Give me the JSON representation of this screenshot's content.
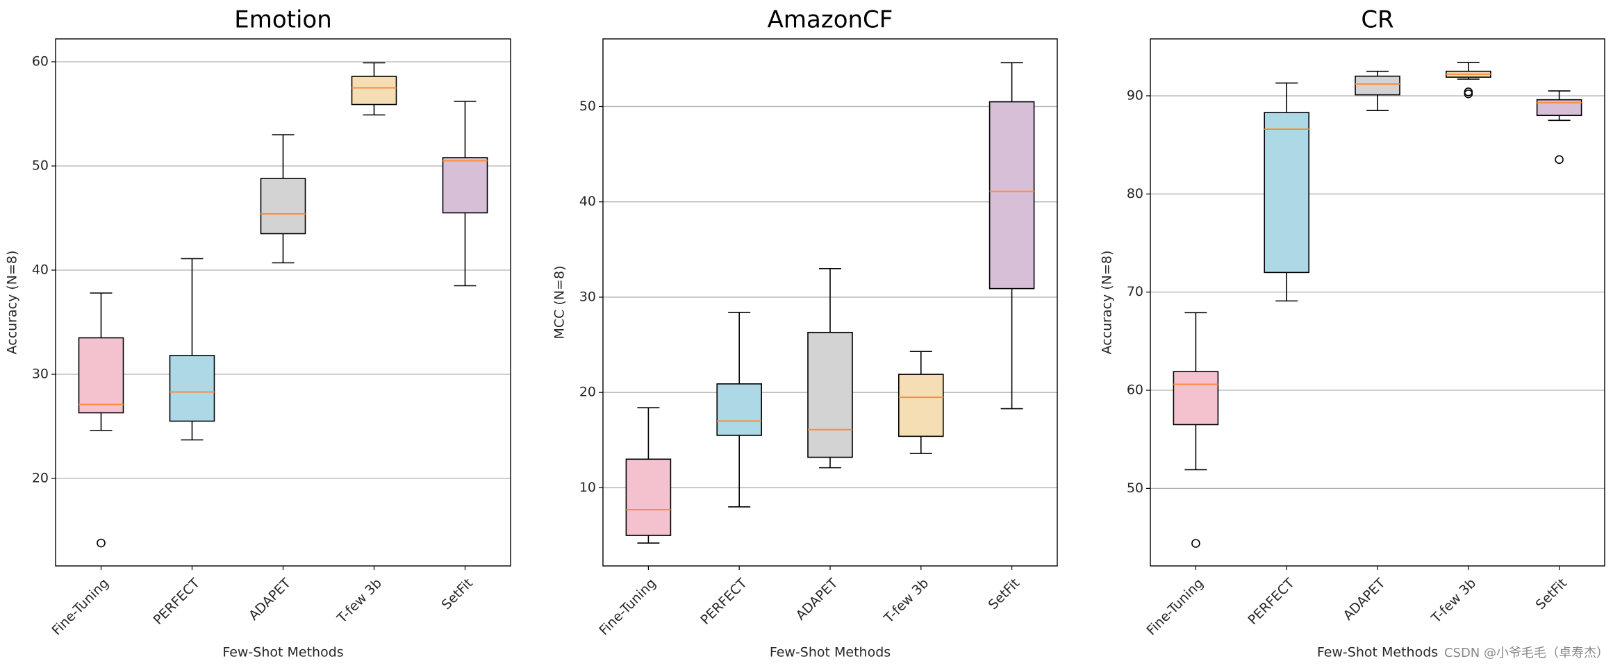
{
  "chart_data": [
    {
      "type": "box",
      "title": "Emotion",
      "xlabel": "Few-Shot Methods",
      "ylabel": "Accuracy (N=8)",
      "categories": [
        "Fine-Tuning",
        "PERFECT",
        "ADAPET",
        "T-few 3b",
        "SetFit"
      ],
      "colors": [
        "#f4c2cf",
        "#add8e6",
        "#d3d3d3",
        "#f5deb3",
        "#d8bfd8"
      ],
      "median_color": "#ff8c3a",
      "boxes": [
        {
          "whislo": 24.6,
          "q1": 26.3,
          "med": 27.1,
          "q3": 33.5,
          "whishi": 37.8,
          "fliers": [
            13.8
          ]
        },
        {
          "whislo": 23.7,
          "q1": 25.5,
          "med": 28.3,
          "q3": 31.8,
          "whishi": 41.1
        },
        {
          "whislo": 40.7,
          "q1": 43.5,
          "med": 45.4,
          "q3": 48.8,
          "whishi": 53.0
        },
        {
          "whislo": 54.9,
          "q1": 55.9,
          "med": 57.5,
          "q3": 58.6,
          "whishi": 59.9
        },
        {
          "whislo": 38.5,
          "q1": 45.5,
          "med": 50.5,
          "q3": 50.8,
          "whishi": 56.2
        }
      ],
      "ylim": [
        11.6,
        62.2
      ],
      "yticks": [
        20,
        30,
        40,
        50,
        60
      ],
      "grid": true
    },
    {
      "type": "box",
      "title": "AmazonCF",
      "xlabel": "Few-Shot Methods",
      "ylabel": "MCC (N=8)",
      "categories": [
        "Fine-Tuning",
        "PERFECT",
        "ADAPET",
        "T-few 3b",
        "SetFit"
      ],
      "colors": [
        "#f4c2cf",
        "#add8e6",
        "#d3d3d3",
        "#f5deb3",
        "#d8bfd8"
      ],
      "median_color": "#ff8c3a",
      "boxes": [
        {
          "whislo": 4.2,
          "q1": 5.0,
          "med": 7.7,
          "q3": 13.0,
          "whishi": 18.4
        },
        {
          "whislo": 8.0,
          "q1": 15.5,
          "med": 17.0,
          "q3": 20.9,
          "whishi": 28.4
        },
        {
          "whislo": 12.1,
          "q1": 13.2,
          "med": 16.1,
          "q3": 26.3,
          "whishi": 33.0
        },
        {
          "whislo": 13.6,
          "q1": 15.4,
          "med": 19.5,
          "q3": 21.9,
          "whishi": 24.3
        },
        {
          "whislo": 18.3,
          "q1": 30.9,
          "med": 41.1,
          "q3": 50.5,
          "whishi": 54.6
        }
      ],
      "ylim": [
        1.8,
        57.1
      ],
      "yticks": [
        10,
        20,
        30,
        40,
        50
      ],
      "grid": true
    },
    {
      "type": "box",
      "title": "CR",
      "xlabel": "Few-Shot Methods",
      "ylabel": "Accuracy (N=8)",
      "categories": [
        "Fine-Tuning",
        "PERFECT",
        "ADAPET",
        "T-few 3b",
        "SetFit"
      ],
      "colors": [
        "#f4c2cf",
        "#add8e6",
        "#d3d3d3",
        "#f5deb3",
        "#d8bfd8"
      ],
      "median_color": "#ff8c3a",
      "boxes": [
        {
          "whislo": 51.9,
          "q1": 56.5,
          "med": 60.6,
          "q3": 61.9,
          "whishi": 67.9,
          "fliers": [
            44.4
          ]
        },
        {
          "whislo": 69.1,
          "q1": 72.0,
          "med": 86.6,
          "q3": 88.3,
          "whishi": 91.3
        },
        {
          "whislo": 88.5,
          "q1": 90.1,
          "med": 91.2,
          "q3": 92.0,
          "whishi": 92.5
        },
        {
          "whislo": 91.7,
          "q1": 91.9,
          "med": 92.2,
          "q3": 92.5,
          "whishi": 93.4,
          "fliers": [
            90.4,
            90.2
          ]
        },
        {
          "whislo": 87.5,
          "q1": 88.0,
          "med": 89.3,
          "q3": 89.6,
          "whishi": 90.5,
          "fliers": [
            83.5
          ]
        }
      ],
      "ylim": [
        42.1,
        95.8
      ],
      "yticks": [
        50,
        60,
        70,
        80,
        90
      ],
      "grid": true
    }
  ],
  "watermark": "CSDN @小爷毛毛（卓寿杰）"
}
